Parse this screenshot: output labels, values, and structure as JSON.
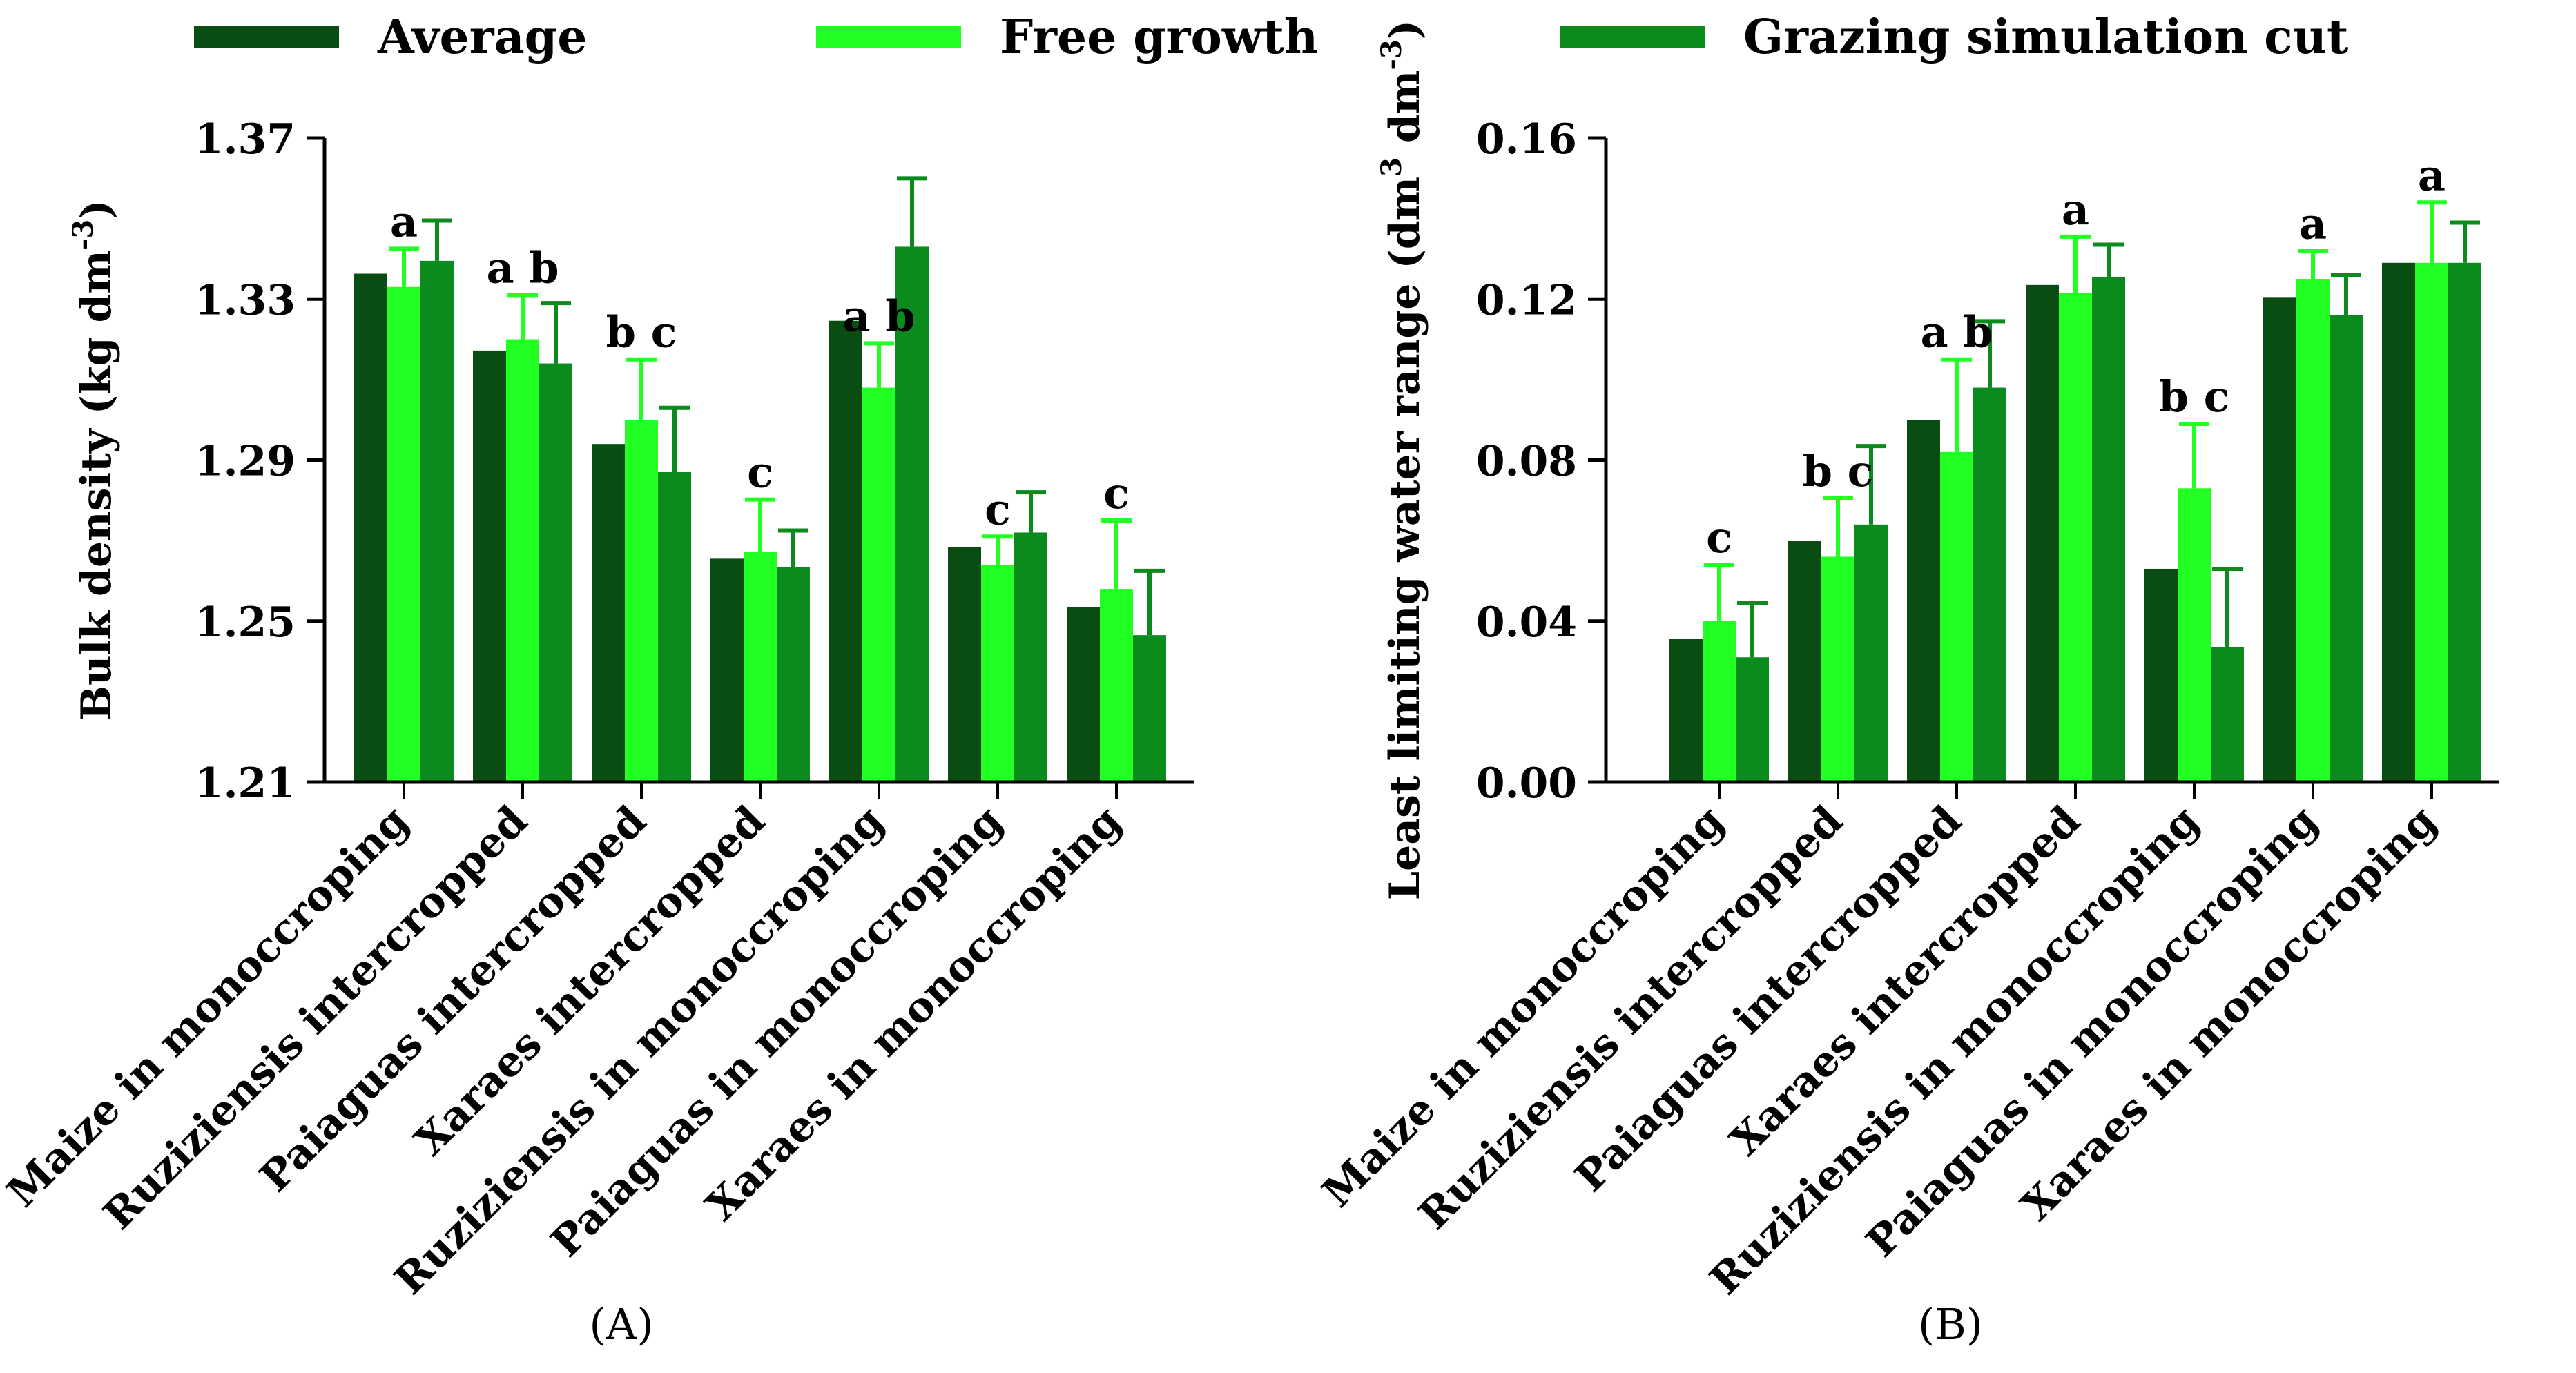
{
  "legend": {
    "items": [
      {
        "label": "Average",
        "color": "#0a4d12"
      },
      {
        "label": "Free growth",
        "color": "#22ff22"
      },
      {
        "label": "Grazing simulation cut",
        "color": "#0b8a1e"
      }
    ]
  },
  "chart_data": [
    {
      "type": "bar",
      "panel_label": "(A)",
      "ylabel": "Bulk density (kg dm",
      "ylabel_sup": "-3",
      "ylabel_close": ")",
      "ylim": [
        1.21,
        1.37
      ],
      "yticks": [
        "1.21",
        "1.25",
        "1.29",
        "1.33",
        "1.37"
      ],
      "categories": [
        "Maize in monoccroping",
        "Ruziziensis intercropped",
        "Paiaguas intercropped",
        "Xaraes intercropped",
        "Ruziziensis in monoccroping",
        "Paiaguas in monoccroping",
        "Xaraes in monoccroping"
      ],
      "series": [
        {
          "name": "Average",
          "color": "#0a4d12",
          "values": [
            1.3363,
            1.3172,
            1.294,
            1.2655,
            1.3246,
            1.2684,
            1.2535
          ],
          "errors": [
            null,
            null,
            null,
            null,
            null,
            null,
            null
          ]
        },
        {
          "name": "Free growth",
          "color": "#22ff22",
          "values": [
            1.333,
            1.32,
            1.3,
            1.2672,
            1.308,
            1.264,
            1.258
          ],
          "errors": [
            0.0095,
            0.011,
            0.015,
            0.013,
            0.011,
            0.007,
            0.017
          ]
        },
        {
          "name": "Grazing simulation cut",
          "color": "#0b8a1e",
          "values": [
            1.3395,
            1.314,
            1.287,
            1.2635,
            1.343,
            1.272,
            1.2465
          ],
          "errors": [
            0.01,
            0.015,
            0.016,
            0.009,
            0.017,
            0.01,
            0.016
          ]
        }
      ],
      "annotations": [
        "a",
        "a b",
        "b c",
        "c",
        "a b",
        "c",
        "c"
      ]
    },
    {
      "type": "bar",
      "panel_label": "(B)",
      "ylabel": "Least limiting water range (dm",
      "ylabel_sup1": "3",
      "ylabel_mid": " dm",
      "ylabel_sup2": "-3",
      "ylabel_close": ")",
      "ylim": [
        0.0,
        0.16
      ],
      "yticks": [
        "0.00",
        "0.04",
        "0.08",
        "0.12",
        "0.16"
      ],
      "categories": [
        "Maize in monoccroping",
        "Ruziziensis  intercropped",
        "Paiaguas intercropped",
        "Xaraes intercropped",
        "Ruziziensis in monoccroping",
        "Paiaguas in monoccroping",
        "Xaraes in monoccroping"
      ],
      "series": [
        {
          "name": "Average",
          "color": "#0a4d12",
          "values": [
            0.0355,
            0.06,
            0.09,
            0.1235,
            0.053,
            0.1205,
            0.129
          ],
          "errors": [
            null,
            null,
            null,
            null,
            null,
            null,
            null
          ]
        },
        {
          "name": "Free growth",
          "color": "#22ff22",
          "values": [
            0.04,
            0.056,
            0.082,
            0.1215,
            0.073,
            0.125,
            0.129
          ],
          "errors": [
            0.014,
            0.0145,
            0.023,
            0.014,
            0.016,
            0.007,
            0.015
          ]
        },
        {
          "name": "Grazing simulation cut",
          "color": "#0b8a1e",
          "values": [
            0.031,
            0.064,
            0.098,
            0.1255,
            0.0335,
            0.116,
            0.129
          ],
          "errors": [
            0.0135,
            0.0195,
            0.0165,
            0.008,
            0.0195,
            0.01,
            0.01
          ]
        }
      ],
      "annotations": [
        "c",
        "b c",
        "a b",
        "a",
        "b c",
        "a",
        "a"
      ]
    }
  ]
}
